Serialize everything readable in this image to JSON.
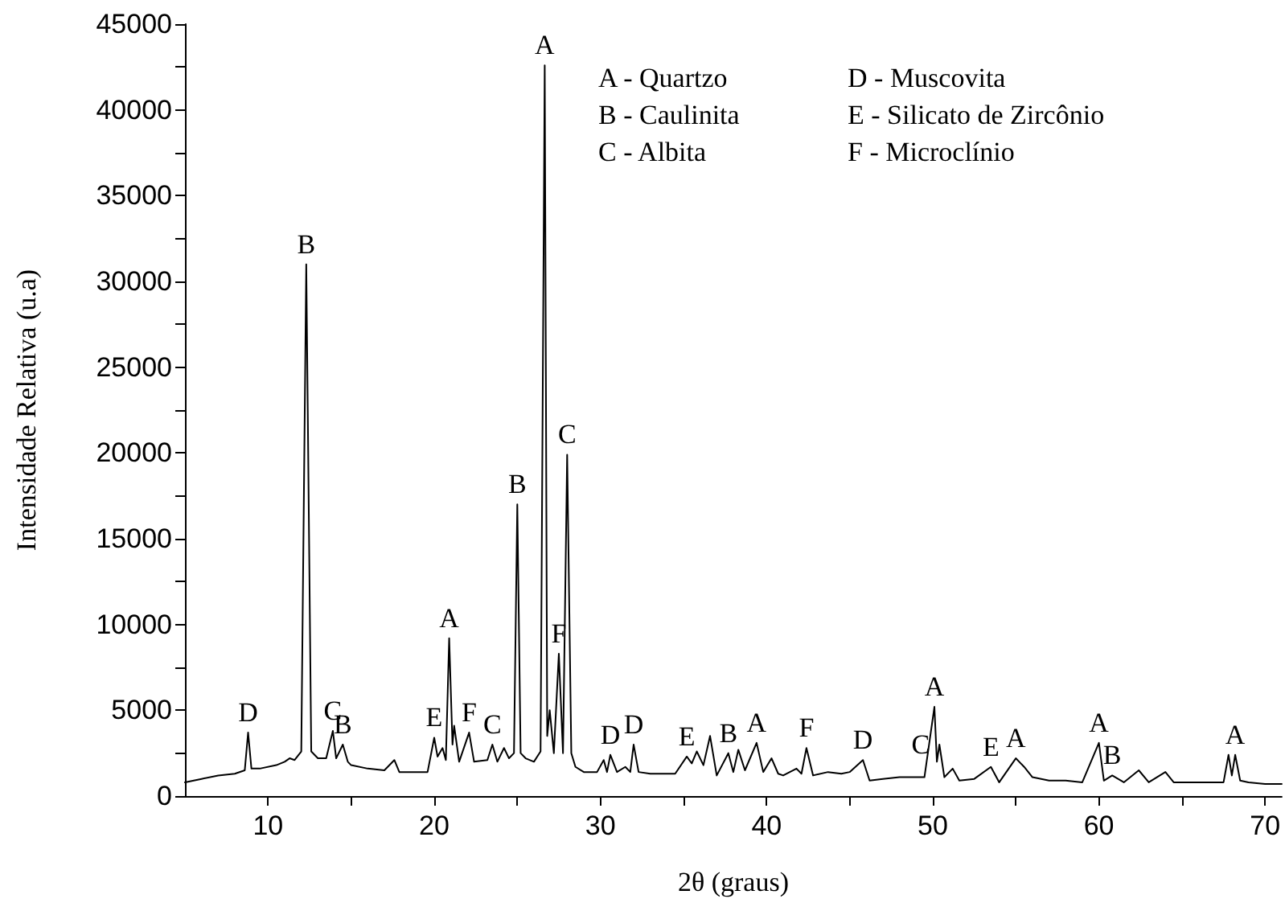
{
  "chart_data": {
    "type": "line",
    "xlabel": "2θ (graus)",
    "ylabel": "Intensidade Relativa (u.a)",
    "xlim": [
      5,
      71
    ],
    "xticks": [
      10,
      {
        "value": 15,
        "label": null
      },
      20,
      {
        "value": 25,
        "label": null
      },
      30,
      {
        "value": 35,
        "label": null
      },
      40,
      {
        "value": 45,
        "label": null
      },
      50,
      {
        "value": 55,
        "label": null
      },
      60,
      {
        "value": 65,
        "label": null
      },
      70
    ],
    "ylim": [
      0,
      45000
    ],
    "yticks": [
      0,
      {
        "value": 2500,
        "label": null
      },
      5000,
      {
        "value": 7500,
        "label": null
      },
      10000,
      {
        "value": 12500,
        "label": null
      },
      15000,
      {
        "value": 17500,
        "label": null
      },
      20000,
      {
        "value": 22500,
        "label": null
      },
      25000,
      {
        "value": 27500,
        "label": null
      },
      30000,
      {
        "value": 32500,
        "label": null
      },
      35000,
      {
        "value": 37500,
        "label": null
      },
      40000,
      {
        "value": 42500,
        "label": null
      },
      45000
    ],
    "grid": false,
    "marker": "none",
    "line_style": "solid",
    "series": [
      {
        "color": "#000000",
        "x": [
          5,
          6,
          7,
          8,
          8.6,
          8.8,
          9.0,
          9.5,
          10.5,
          11,
          11.3,
          11.6,
          12.0,
          12.3,
          12.6,
          13.0,
          13.5,
          13.9,
          14.1,
          14.5,
          14.8,
          15,
          16,
          17,
          17.6,
          17.9,
          19,
          19.6,
          20.0,
          20.2,
          20.5,
          20.7,
          20.9,
          21.1,
          21.2,
          21.5,
          22.1,
          22.4,
          23.2,
          23.5,
          23.8,
          24.2,
          24.5,
          24.8,
          25.0,
          25.2,
          25.5,
          26.0,
          26.4,
          26.65,
          26.8,
          26.95,
          27.2,
          27.5,
          27.75,
          28.0,
          28.25,
          28.5,
          29.0,
          29.8,
          30.2,
          30.4,
          30.6,
          31.0,
          31.5,
          31.8,
          32.0,
          32.3,
          33,
          34.5,
          35.2,
          35.5,
          35.8,
          36.2,
          36.6,
          37.0,
          37.7,
          38.0,
          38.3,
          38.7,
          39.4,
          39.8,
          40.3,
          40.7,
          41.0,
          41.8,
          42.1,
          42.4,
          42.8,
          43.7,
          44.5,
          45.0,
          45.8,
          46.2,
          47,
          48,
          49.5,
          50.1,
          50.25,
          50.4,
          50.7,
          51.2,
          51.6,
          52.5,
          53.5,
          54,
          55.0,
          55.5,
          56,
          57,
          58,
          59,
          60.0,
          60.3,
          60.8,
          61.5,
          62.4,
          63,
          64,
          64.5,
          66,
          67.5,
          67.8,
          68.0,
          68.2,
          68.5,
          69,
          70,
          71
        ],
        "values": [
          800,
          1000,
          1200,
          1300,
          1500,
          3700,
          1600,
          1600,
          1800,
          2000,
          2200,
          2100,
          2600,
          31000,
          2600,
          2200,
          2200,
          3800,
          2200,
          3000,
          2000,
          1800,
          1600,
          1500,
          2100,
          1400,
          1400,
          1400,
          3400,
          2300,
          2800,
          2100,
          9200,
          3000,
          4100,
          2000,
          3700,
          2000,
          2100,
          3000,
          2000,
          2800,
          2200,
          2500,
          17000,
          2500,
          2200,
          2000,
          2600,
          42600,
          3500,
          5000,
          2500,
          8300,
          2500,
          19900,
          2500,
          1700,
          1400,
          1400,
          2100,
          1400,
          2400,
          1400,
          1700,
          1400,
          3000,
          1400,
          1300,
          1300,
          2300,
          1900,
          2600,
          1800,
          3500,
          1200,
          2500,
          1400,
          2700,
          1500,
          3100,
          1400,
          2200,
          1300,
          1200,
          1600,
          1300,
          2800,
          1200,
          1400,
          1300,
          1400,
          2100,
          900,
          1000,
          1100,
          1100,
          5200,
          2000,
          3000,
          1100,
          1600,
          900,
          1000,
          1700,
          800,
          2200,
          1700,
          1100,
          900,
          900,
          800,
          3100,
          900,
          1200,
          800,
          1500,
          800,
          1400,
          800,
          800,
          800,
          2400,
          1200,
          2400,
          900,
          800,
          700,
          700
        ]
      }
    ],
    "annotations": [
      "A - Quartzo",
      "B - Caulinita",
      "C - Albita",
      "D - Muscovita",
      "E - Silicato de Zircônio",
      "F - Microclínio",
      {
        "text": "D",
        "x": 8.8,
        "y": 3700
      },
      {
        "text": "B",
        "x": 12.3,
        "y": 31000
      },
      {
        "text": "C",
        "x": 13.9,
        "y": 3800
      },
      {
        "text": "B",
        "x": 14.5,
        "y": 3000
      },
      {
        "text": "E",
        "x": 20.0,
        "y": 3400
      },
      {
        "text": "A",
        "x": 20.9,
        "y": 9200
      },
      {
        "text": "F",
        "x": 22.1,
        "y": 3700
      },
      {
        "text": "C",
        "x": 23.5,
        "y": 3000
      },
      {
        "text": "B",
        "x": 25.0,
        "y": 17000
      },
      {
        "text": "A",
        "x": 26.65,
        "y": 42600
      },
      {
        "text": "F",
        "x": 27.5,
        "y": 8300
      },
      {
        "text": "C",
        "x": 28.0,
        "y": 19900
      },
      {
        "text": "D",
        "x": 30.6,
        "y": 2400
      },
      {
        "text": "D",
        "x": 32.0,
        "y": 3000
      },
      {
        "text": "E",
        "x": 35.2,
        "y": 2300
      },
      {
        "text": "B",
        "x": 37.7,
        "y": 2500
      },
      {
        "text": "A",
        "x": 39.4,
        "y": 3100
      },
      {
        "text": "F",
        "x": 42.4,
        "y": 2800
      },
      {
        "text": "D",
        "x": 45.8,
        "y": 2100
      },
      {
        "text": "C",
        "x": 50.4,
        "y": 3000
      },
      {
        "text": "A",
        "x": 50.1,
        "y": 5200
      },
      {
        "text": "E",
        "x": 53.5,
        "y": 1700
      },
      {
        "text": "A",
        "x": 55.0,
        "y": 2200
      },
      {
        "text": "A",
        "x": 60.0,
        "y": 3100
      },
      {
        "text": "B",
        "x": 60.8,
        "y": 1200
      },
      {
        "text": "A",
        "x": 68.2,
        "y": 2400
      }
    ]
  }
}
